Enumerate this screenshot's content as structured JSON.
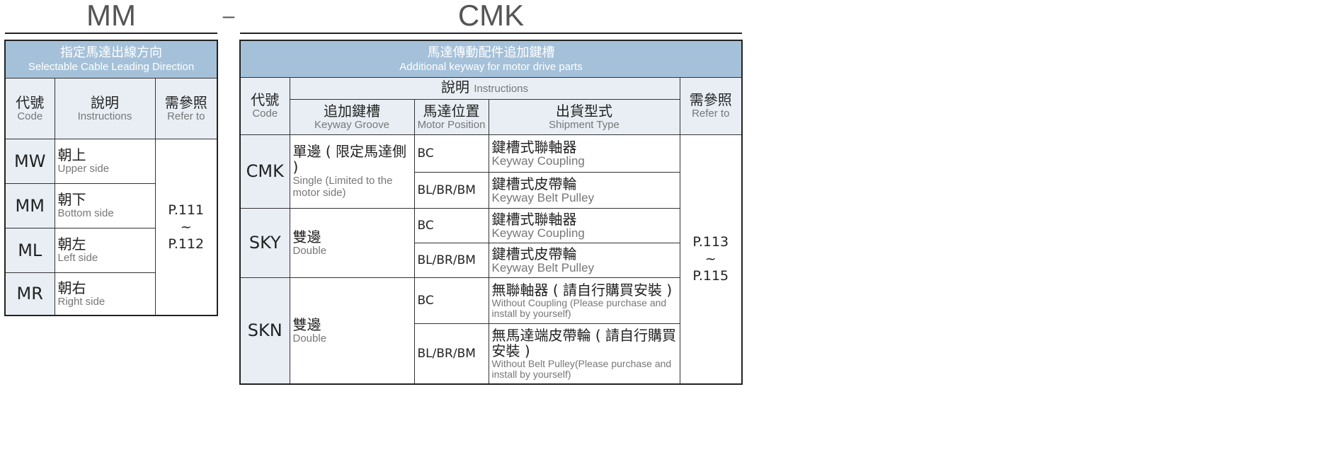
{
  "titles": {
    "left": "MM",
    "dash": "–",
    "right": "CMK"
  },
  "left_table": {
    "header_zh": "指定馬達出線方向",
    "header_en": "Selectable Cable Leading Direction",
    "columns": [
      {
        "zh": "代號",
        "en": "Code"
      },
      {
        "zh": "說明",
        "en": "Instructions"
      },
      {
        "zh": "需參照",
        "en": "Refer to"
      }
    ],
    "rows": [
      {
        "code": "MW",
        "zh": "朝上",
        "en": "Upper side"
      },
      {
        "code": "MM",
        "zh": "朝下",
        "en": "Bottom side"
      },
      {
        "code": "ML",
        "zh": "朝左",
        "en": "Left side"
      },
      {
        "code": "MR",
        "zh": "朝右",
        "en": "Right side"
      }
    ],
    "refer": {
      "from": "P.111",
      "sep": "~",
      "to": "P.112"
    }
  },
  "right_table": {
    "header_zh": "馬達傳動配件追加鍵槽",
    "header_en": "Additional keyway for motor drive parts",
    "code": {
      "zh": "代號",
      "en": "Code"
    },
    "instructions": {
      "zh": "說明",
      "en": "Instructions"
    },
    "sub": [
      {
        "zh": "追加鍵槽",
        "en": "Keyway Groove"
      },
      {
        "zh": "馬達位置",
        "en": "Motor Position"
      },
      {
        "zh": "出貨型式",
        "en": "Shipment Type"
      }
    ],
    "refer_head": {
      "zh": "需參照",
      "en": "Refer to"
    },
    "groups": [
      {
        "code": "CMK",
        "zh": "單邊 ( 限定馬達側 )",
        "en": "Single (Limited to the motor side)",
        "rows": [
          {
            "pos": "BC",
            "zh": "鍵槽式聯軸器",
            "en": "Keyway Coupling"
          },
          {
            "pos": "BL/BR/BM",
            "zh": "鍵槽式皮帶輪",
            "en": "Keyway Belt Pulley"
          }
        ]
      },
      {
        "code": "SKY",
        "zh": "雙邊",
        "en": "Double",
        "rows": [
          {
            "pos": "BC",
            "zh": "鍵槽式聯軸器",
            "en": "Keyway Coupling"
          },
          {
            "pos": "BL/BR/BM",
            "zh": "鍵槽式皮帶輪",
            "en": "Keyway Belt Pulley"
          }
        ]
      },
      {
        "code": "SKN",
        "zh": "雙邊",
        "en": "Double",
        "rows": [
          {
            "pos": "BC",
            "zh": "無聯軸器 ( 請自行購買安裝 )",
            "en": "Without Coupling (Please purchase and install by yourself)"
          },
          {
            "pos": "BL/BR/BM",
            "zh": "無馬達端皮帶輪 ( 請自行購買安裝 )",
            "en": "Without Belt Pulley(Please purchase and install by yourself)"
          }
        ]
      }
    ],
    "refer": {
      "from": "P.113",
      "sep": "~",
      "to": "P.115"
    }
  }
}
